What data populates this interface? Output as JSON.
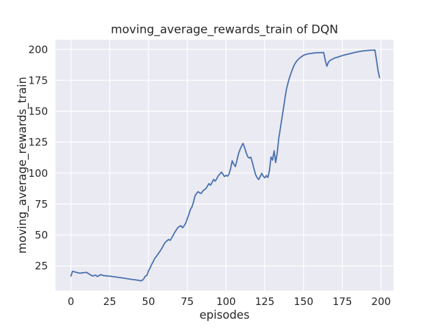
{
  "chart_data": {
    "type": "line",
    "title": "moving_average_rewards_train of DQN",
    "xlabel": "episodes",
    "ylabel": "moving_average_rewards_train",
    "x_ticks": [
      0,
      25,
      50,
      75,
      100,
      125,
      150,
      175,
      200
    ],
    "y_ticks": [
      25,
      50,
      75,
      100,
      125,
      150,
      175,
      200
    ],
    "xlim": [
      -10,
      208
    ],
    "ylim": [
      5,
      207.8
    ],
    "grid": true,
    "legend_position": "none",
    "style": {
      "figure_bg": "#ffffff",
      "plot_bg": "#eaeaf2",
      "grid_color": "#ffffff",
      "line_color": "#4c72b0",
      "text_color": "#262626"
    },
    "series": [
      {
        "name": "moving_average_rewards_train",
        "x_start": 0,
        "x_step": 1,
        "x_meaning": "episode index 0-199",
        "y": [
          16.8,
          20.6,
          20.3,
          19.9,
          19.6,
          19.3,
          19.1,
          19.3,
          19.5,
          19.6,
          19.8,
          19.0,
          18.2,
          17.4,
          16.8,
          17.2,
          17.6,
          16.4,
          17.0,
          17.9,
          17.6,
          17.2,
          17.0,
          16.8,
          16.9,
          16.7,
          16.5,
          16.3,
          16.2,
          16.0,
          15.8,
          15.6,
          15.5,
          15.3,
          15.1,
          14.9,
          14.7,
          14.5,
          14.3,
          14.1,
          13.9,
          13.8,
          13.6,
          13.5,
          13.2,
          12.9,
          13.3,
          14.7,
          16.8,
          17.2,
          21.0,
          23.2,
          26.0,
          28.3,
          31.0,
          32.5,
          34.3,
          36.0,
          38.0,
          40.0,
          42.5,
          44.3,
          45.3,
          46.4,
          45.6,
          47.8,
          49.8,
          52.3,
          54.2,
          56.0,
          57.0,
          57.4,
          55.8,
          57.5,
          59.5,
          63.0,
          66.5,
          70.5,
          72.5,
          76.5,
          81.5,
          83.5,
          85.0,
          84.0,
          83.5,
          85.5,
          86.5,
          87.5,
          89.5,
          91.5,
          90.2,
          92.5,
          94.8,
          93.5,
          95.5,
          97.8,
          99.2,
          100.8,
          99.2,
          97.2,
          98.2,
          97.5,
          99.5,
          104.0,
          110.0,
          107.2,
          105.3,
          110.0,
          115.5,
          119.0,
          121.8,
          124.0,
          120.5,
          116.5,
          113.2,
          112.2,
          112.8,
          108.5,
          103.5,
          99.0,
          96.5,
          94.8,
          97.0,
          99.8,
          97.5,
          96.2,
          98.0,
          96.5,
          102.0,
          113.0,
          110.5,
          118.0,
          108.5,
          116.0,
          128.0,
          136.0,
          144.0,
          152.0,
          160.5,
          168.0,
          173.0,
          177.5,
          181.0,
          184.5,
          187.5,
          189.5,
          191.2,
          192.5,
          193.5,
          194.4,
          195.2,
          195.7,
          196.1,
          196.4,
          196.6,
          196.8,
          197.0,
          197.1,
          197.2,
          197.3,
          197.3,
          197.4,
          197.4,
          197.5,
          191.0,
          186.4,
          189.5,
          191.0,
          191.8,
          192.4,
          193.0,
          193.4,
          193.8,
          194.2,
          194.6,
          195.0,
          195.4,
          195.7,
          196.0,
          196.3,
          196.6,
          196.9,
          197.2,
          197.5,
          197.8,
          198.0,
          198.3,
          198.5,
          198.7,
          198.9,
          199.0,
          199.1,
          199.2,
          199.3,
          199.4,
          199.4,
          199.5,
          191.5,
          183.0,
          177.2
        ]
      }
    ]
  }
}
